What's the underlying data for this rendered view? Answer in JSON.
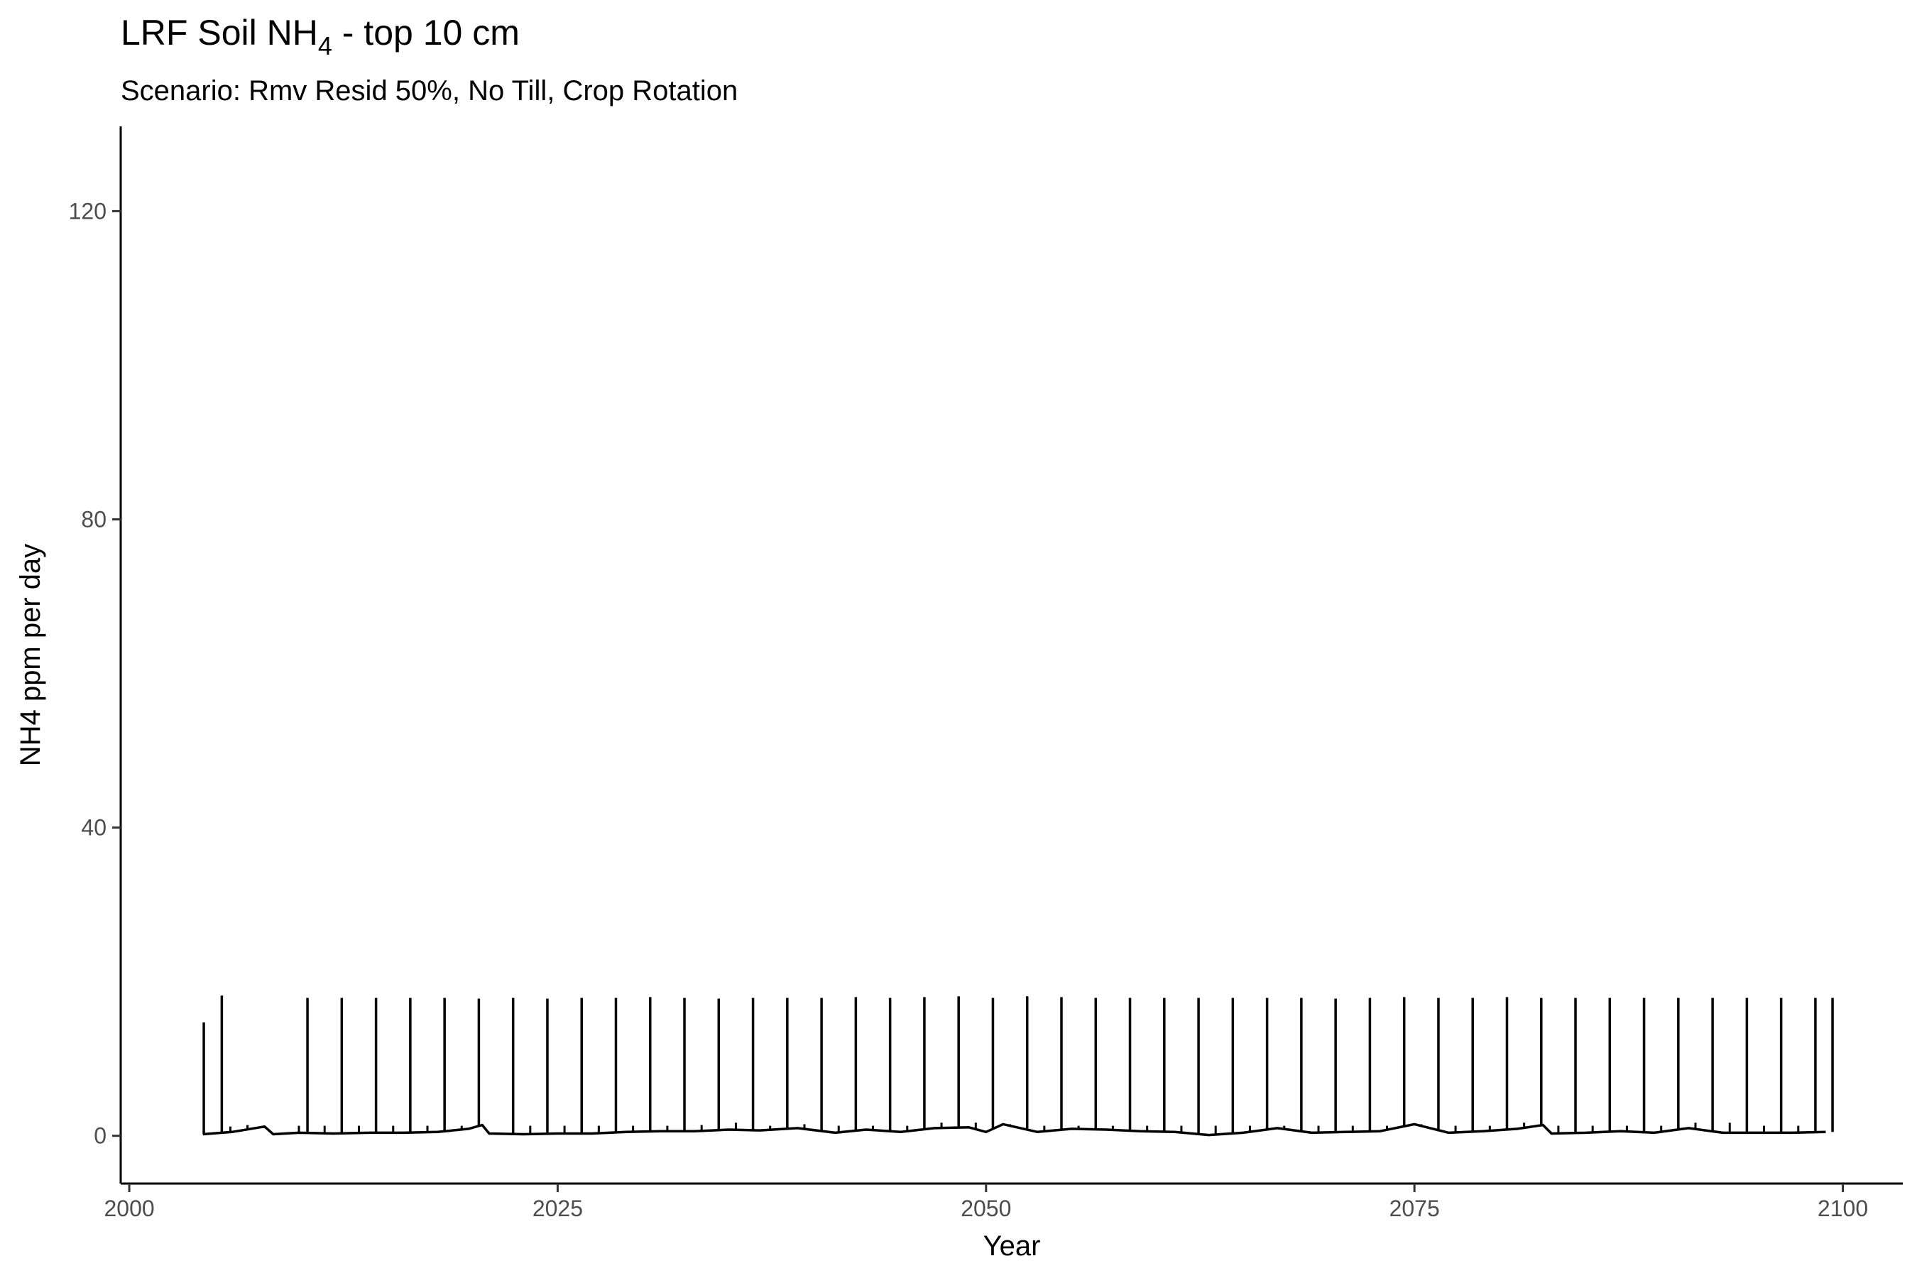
{
  "chart_data": {
    "type": "line",
    "title_main": "LRF Soil NH",
    "title_sub": "4",
    "title_rest": " - top 10 cm",
    "subtitle": "Scenario: Rmv Resid 50%, No Till, Crop Rotation",
    "xlabel": "Year",
    "ylabel": "NH4 ppm per day",
    "xlim": [
      1999.5,
      2103.5
    ],
    "ylim": [
      -6.2,
      131
    ],
    "x_ticks": [
      2000,
      2025,
      2050,
      2075,
      2100
    ],
    "y_ticks": [
      0,
      40,
      80,
      120
    ],
    "grid": false,
    "legend": "none",
    "line_color": "#000000",
    "series": [
      {
        "baseline": [
          [
            2004.3,
            0.2
          ],
          [
            2006.0,
            0.5
          ],
          [
            2007.9,
            1.2
          ],
          [
            2008.4,
            0.2
          ],
          [
            2009.9,
            0.4
          ],
          [
            2011.9,
            0.3
          ],
          [
            2014.0,
            0.4
          ],
          [
            2016.0,
            0.4
          ],
          [
            2018.0,
            0.5
          ],
          [
            2019.8,
            0.9
          ],
          [
            2020.6,
            1.4
          ],
          [
            2021.0,
            0.3
          ],
          [
            2023.0,
            0.2
          ],
          [
            2025.0,
            0.3
          ],
          [
            2027.0,
            0.3
          ],
          [
            2029.0,
            0.5
          ],
          [
            2031.0,
            0.6
          ],
          [
            2033.0,
            0.6
          ],
          [
            2035.0,
            0.8
          ],
          [
            2036.8,
            0.7
          ],
          [
            2039.0,
            1.0
          ],
          [
            2041.2,
            0.4
          ],
          [
            2043.0,
            0.8
          ],
          [
            2045.0,
            0.5
          ],
          [
            2047.0,
            1.0
          ],
          [
            2049.0,
            1.1
          ],
          [
            2050.0,
            0.5
          ],
          [
            2051.0,
            1.5
          ],
          [
            2053.0,
            0.5
          ],
          [
            2055.0,
            0.9
          ],
          [
            2057.0,
            0.8
          ],
          [
            2059.0,
            0.6
          ],
          [
            2061.0,
            0.5
          ],
          [
            2063.0,
            0.1
          ],
          [
            2065.0,
            0.4
          ],
          [
            2067.0,
            1.0
          ],
          [
            2069.0,
            0.4
          ],
          [
            2071.0,
            0.5
          ],
          [
            2073.0,
            0.6
          ],
          [
            2075.0,
            1.5
          ],
          [
            2077.0,
            0.4
          ],
          [
            2079.0,
            0.6
          ],
          [
            2081.0,
            0.9
          ],
          [
            2082.5,
            1.4
          ],
          [
            2083.0,
            0.3
          ],
          [
            2085.0,
            0.4
          ],
          [
            2087.0,
            0.6
          ],
          [
            2089.0,
            0.4
          ],
          [
            2091.0,
            1.0
          ],
          [
            2093.0,
            0.4
          ],
          [
            2095.0,
            0.4
          ],
          [
            2097.0,
            0.4
          ],
          [
            2099.0,
            0.5
          ]
        ],
        "spikes": [
          [
            2004.35,
            14.7
          ],
          [
            2005.4,
            18.2
          ],
          [
            2010.4,
            17.9
          ],
          [
            2012.4,
            17.9
          ],
          [
            2014.4,
            17.9
          ],
          [
            2016.4,
            17.9
          ],
          [
            2018.4,
            17.9
          ],
          [
            2020.4,
            17.8
          ],
          [
            2022.4,
            17.9
          ],
          [
            2024.4,
            17.8
          ],
          [
            2026.4,
            17.9
          ],
          [
            2028.4,
            17.9
          ],
          [
            2030.4,
            18.0
          ],
          [
            2032.4,
            17.9
          ],
          [
            2034.4,
            17.8
          ],
          [
            2036.4,
            17.9
          ],
          [
            2038.4,
            17.9
          ],
          [
            2040.4,
            17.9
          ],
          [
            2042.4,
            18.0
          ],
          [
            2044.4,
            17.9
          ],
          [
            2046.4,
            18.0
          ],
          [
            2048.4,
            18.1
          ],
          [
            2050.4,
            17.9
          ],
          [
            2052.4,
            18.1
          ],
          [
            2054.4,
            18.0
          ],
          [
            2056.4,
            17.9
          ],
          [
            2058.4,
            17.9
          ],
          [
            2060.4,
            17.9
          ],
          [
            2062.4,
            17.9
          ],
          [
            2064.4,
            17.9
          ],
          [
            2066.4,
            17.9
          ],
          [
            2068.4,
            17.9
          ],
          [
            2070.4,
            17.8
          ],
          [
            2072.4,
            17.9
          ],
          [
            2074.4,
            18.0
          ],
          [
            2076.4,
            17.9
          ],
          [
            2078.4,
            17.9
          ],
          [
            2080.4,
            18.0
          ],
          [
            2082.4,
            17.9
          ],
          [
            2084.4,
            17.9
          ],
          [
            2086.4,
            17.9
          ],
          [
            2088.4,
            17.9
          ],
          [
            2090.4,
            17.9
          ],
          [
            2092.4,
            17.9
          ],
          [
            2094.4,
            17.9
          ],
          [
            2096.4,
            17.9
          ],
          [
            2098.4,
            17.9
          ],
          [
            2099.4,
            17.9
          ]
        ],
        "small_spikes": [
          [
            2005.9,
            1.2
          ],
          [
            2006.9,
            1.4
          ],
          [
            2009.9,
            1.3
          ],
          [
            2011.4,
            1.3
          ],
          [
            2013.4,
            1.3
          ],
          [
            2015.4,
            1.3
          ],
          [
            2017.4,
            1.3
          ],
          [
            2019.4,
            1.3
          ],
          [
            2023.4,
            1.3
          ],
          [
            2025.4,
            1.3
          ],
          [
            2027.4,
            1.3
          ],
          [
            2029.4,
            1.3
          ],
          [
            2031.4,
            1.3
          ],
          [
            2033.4,
            1.4
          ],
          [
            2035.4,
            1.7
          ],
          [
            2037.4,
            1.3
          ],
          [
            2039.4,
            1.5
          ],
          [
            2041.4,
            1.3
          ],
          [
            2043.4,
            1.3
          ],
          [
            2045.4,
            1.3
          ],
          [
            2047.4,
            1.7
          ],
          [
            2049.4,
            1.7
          ],
          [
            2051.4,
            1.5
          ],
          [
            2053.4,
            1.3
          ],
          [
            2055.4,
            1.3
          ],
          [
            2057.4,
            1.3
          ],
          [
            2059.4,
            1.3
          ],
          [
            2061.4,
            1.3
          ],
          [
            2063.4,
            1.3
          ],
          [
            2065.4,
            1.3
          ],
          [
            2067.4,
            1.3
          ],
          [
            2069.4,
            1.3
          ],
          [
            2071.4,
            1.3
          ],
          [
            2073.4,
            1.3
          ],
          [
            2075.4,
            1.5
          ],
          [
            2077.4,
            1.3
          ],
          [
            2079.4,
            1.3
          ],
          [
            2081.4,
            1.7
          ],
          [
            2083.4,
            1.3
          ],
          [
            2085.4,
            1.3
          ],
          [
            2087.4,
            1.3
          ],
          [
            2089.4,
            1.3
          ],
          [
            2091.4,
            1.7
          ],
          [
            2093.4,
            1.7
          ],
          [
            2095.4,
            1.3
          ],
          [
            2097.4,
            1.3
          ]
        ]
      }
    ]
  }
}
